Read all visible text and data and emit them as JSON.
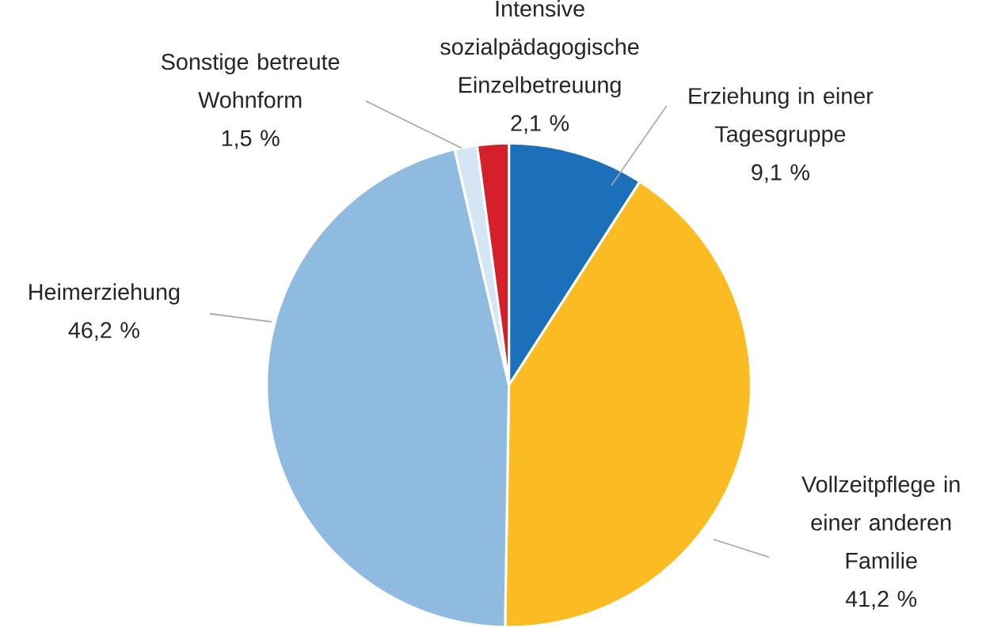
{
  "chart_data": {
    "type": "pie",
    "categories": [
      "Erziehung in einer Tagesgruppe",
      "Vollzeitpflege in einer anderen Familie",
      "Heimerziehung",
      "Sonstige betreute Wohnform",
      "Intensive sozialpädagogische Einzelbetreuung"
    ],
    "values": [
      9.1,
      41.2,
      46.2,
      1.5,
      2.1
    ],
    "colors": [
      "#1b70b9",
      "#fbbc23",
      "#8fbbe0",
      "#d4e5f4",
      "#d51f2a"
    ],
    "value_labels": [
      "9,1 %",
      "41,2 %",
      "46,2 %",
      "1,5 %",
      "2,1 %"
    ]
  }
}
